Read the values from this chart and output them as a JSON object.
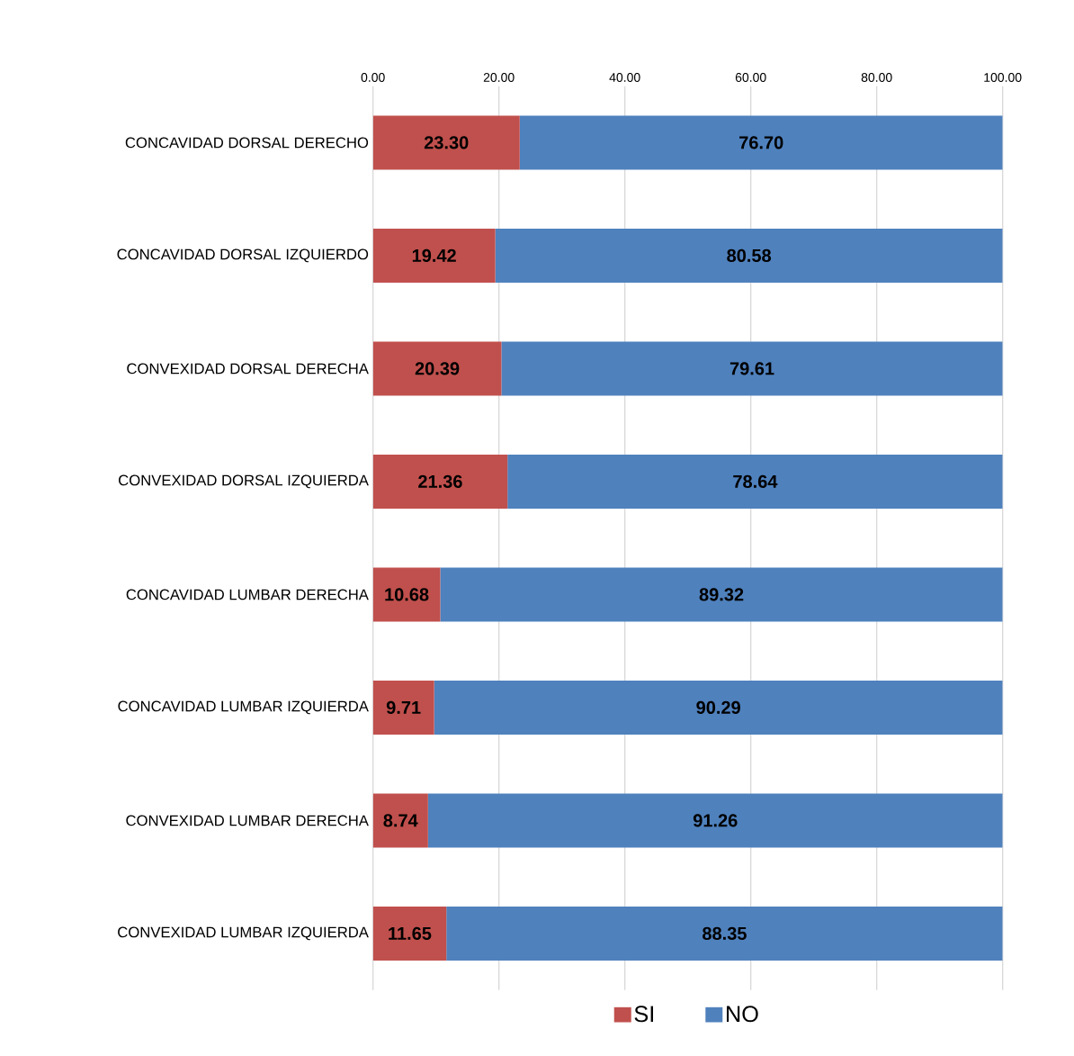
{
  "chart_data": {
    "type": "bar",
    "orientation": "horizontal",
    "stacked": true,
    "categories": [
      "CONCAVIDAD DORSAL DERECHO",
      "CONCAVIDAD DORSAL IZQUIERDO",
      "CONVEXIDAD DORSAL DERECHA",
      "CONVEXIDAD DORSAL IZQUIERDA",
      "CONCAVIDAD LUMBAR DERECHA",
      "CONCAVIDAD LUMBAR IZQUIERDA",
      "CONVEXIDAD LUMBAR DERECHA",
      "CONVEXIDAD LUMBAR IZQUIERDA"
    ],
    "series": [
      {
        "name": "SI",
        "color": "#c0504d",
        "values": [
          23.3,
          19.42,
          20.39,
          21.36,
          10.68,
          9.71,
          8.74,
          11.65
        ],
        "value_labels": [
          "23.30",
          "19.42",
          "20.39",
          "21.36",
          "10.68",
          "9.71",
          "8.74",
          "11.65"
        ]
      },
      {
        "name": "NO",
        "color": "#4f81bd",
        "values": [
          76.7,
          80.58,
          79.61,
          78.64,
          89.32,
          90.29,
          91.26,
          88.35
        ],
        "value_labels": [
          "76.70",
          "80.58",
          "79.61",
          "78.64",
          "89.32",
          "90.29",
          "91.26",
          "88.35"
        ]
      }
    ],
    "xlim": [
      0,
      100
    ],
    "xticks": [
      {
        "value": 0,
        "label": "0.00"
      },
      {
        "value": 20,
        "label": "20.00"
      },
      {
        "value": 40,
        "label": "40.00"
      },
      {
        "value": 60,
        "label": "60.00"
      },
      {
        "value": 80,
        "label": "80.00"
      },
      {
        "value": 100,
        "label": "100.00"
      }
    ],
    "grid": "x",
    "legend": "bottom"
  }
}
